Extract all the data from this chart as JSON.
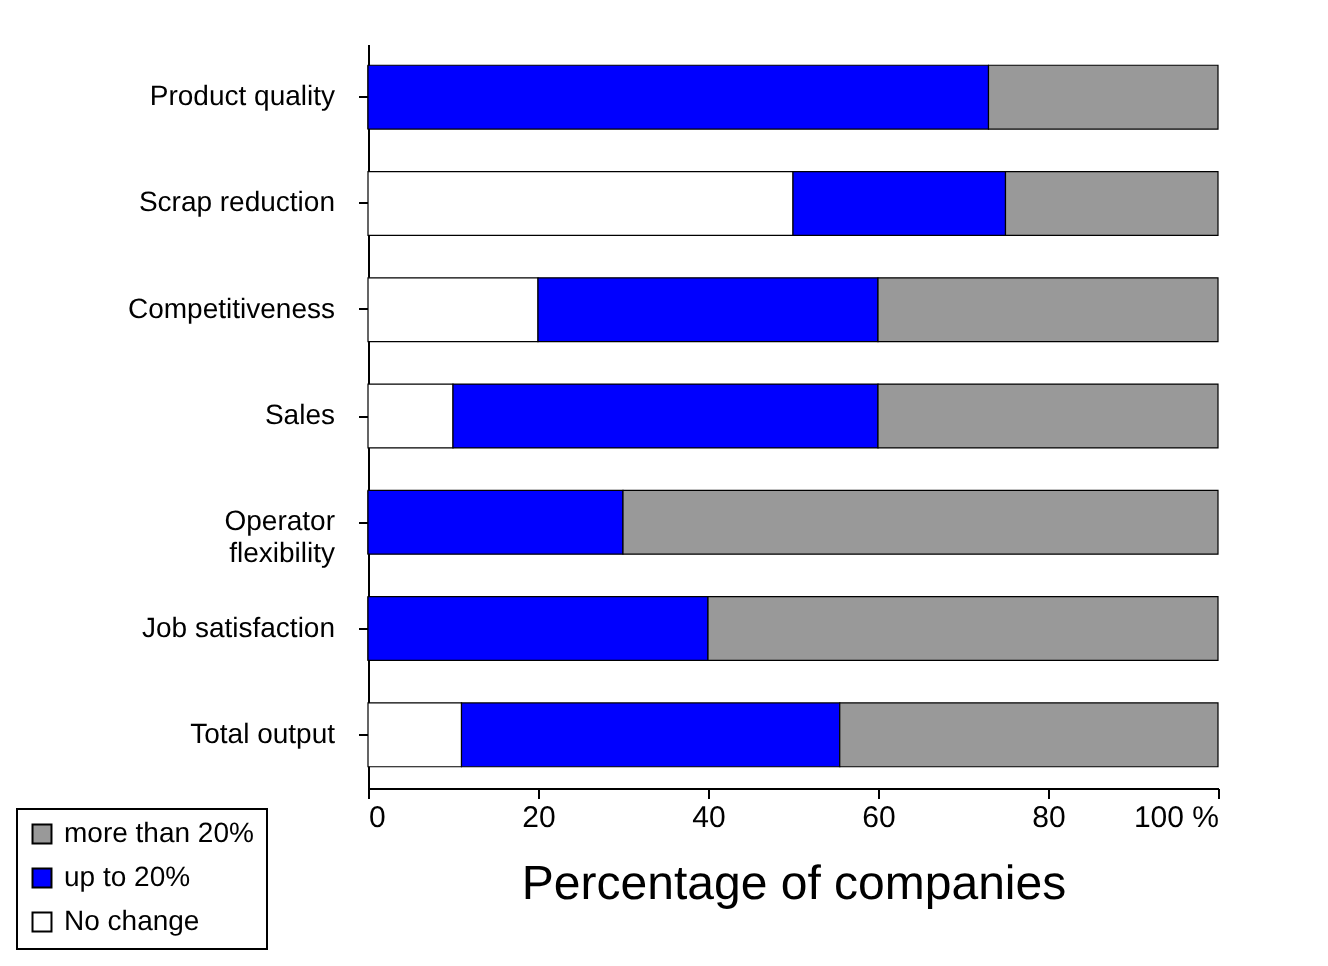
{
  "chart_data": {
    "type": "bar",
    "orientation": "horizontal",
    "stacked": true,
    "xlabel": "Percentage of companies",
    "categories": [
      "Product quality",
      "Scrap reduction",
      "Competitiveness",
      "Sales",
      "Operator flexibility",
      "Job satisfaction",
      "Total output"
    ],
    "series": [
      {
        "name": "No change",
        "color": "#ffffff",
        "values": [
          0,
          50,
          20,
          10,
          0,
          0,
          11
        ]
      },
      {
        "name": "up to 20%",
        "color": "#0000ff",
        "values": [
          73,
          25,
          40,
          50,
          30,
          40,
          44.5
        ]
      },
      {
        "name": "more than 20%",
        "color": "#999999",
        "values": [
          27,
          25,
          40,
          40,
          70,
          60,
          44.5
        ]
      }
    ],
    "xlim": [
      0,
      100
    ],
    "xticks": [
      0,
      20,
      40,
      60,
      80,
      {
        "value": 100,
        "label": "100 %"
      }
    ],
    "grid": false,
    "legend": "bottom left"
  }
}
